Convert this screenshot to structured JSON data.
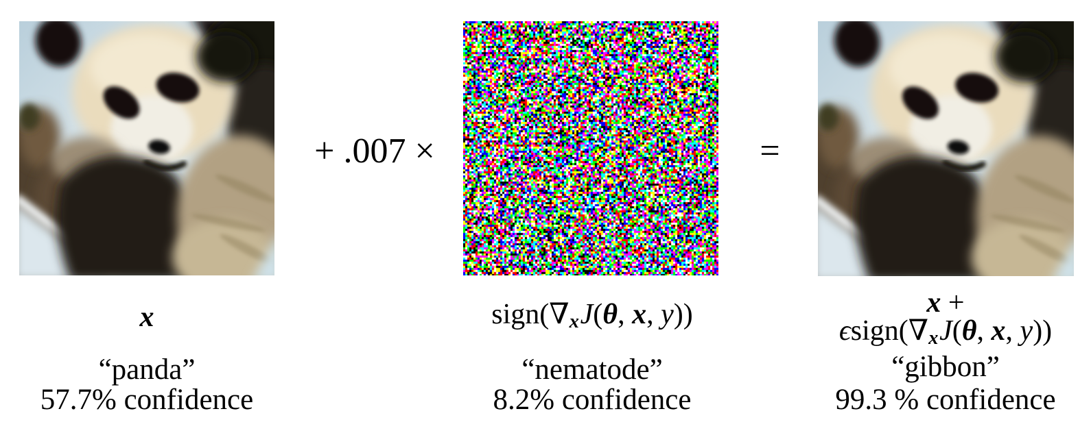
{
  "operators": {
    "plus": "+ .007 ×",
    "equals": "="
  },
  "formulas": {
    "x": "x",
    "plus": " +",
    "epsilon": "ϵ",
    "grad": {
      "fn": "sign(",
      "nabla": "∇",
      "sub": "x",
      "J": "J",
      "lp": "(",
      "theta": "θ",
      "c1": ", ",
      "x": "x",
      "c2": ", ",
      "y": "y",
      "rp": "))"
    }
  },
  "panels": {
    "input": {
      "image": "panda-photo",
      "class_label": "“panda”",
      "confidence": "57.7% confidence"
    },
    "noise": {
      "image": "sign-gradient-noise",
      "class_label": "“nematode”",
      "confidence": "8.2% confidence"
    },
    "output": {
      "image": "perturbed-panda-photo",
      "class_label": "“gibbon”",
      "confidence": "99.3 % confidence"
    }
  },
  "noise_palette": [
    "#000000",
    "#ffffff",
    "#ff0000",
    "#00ff00",
    "#0000ff",
    "#ffff00",
    "#ff00ff",
    "#00ffff"
  ]
}
